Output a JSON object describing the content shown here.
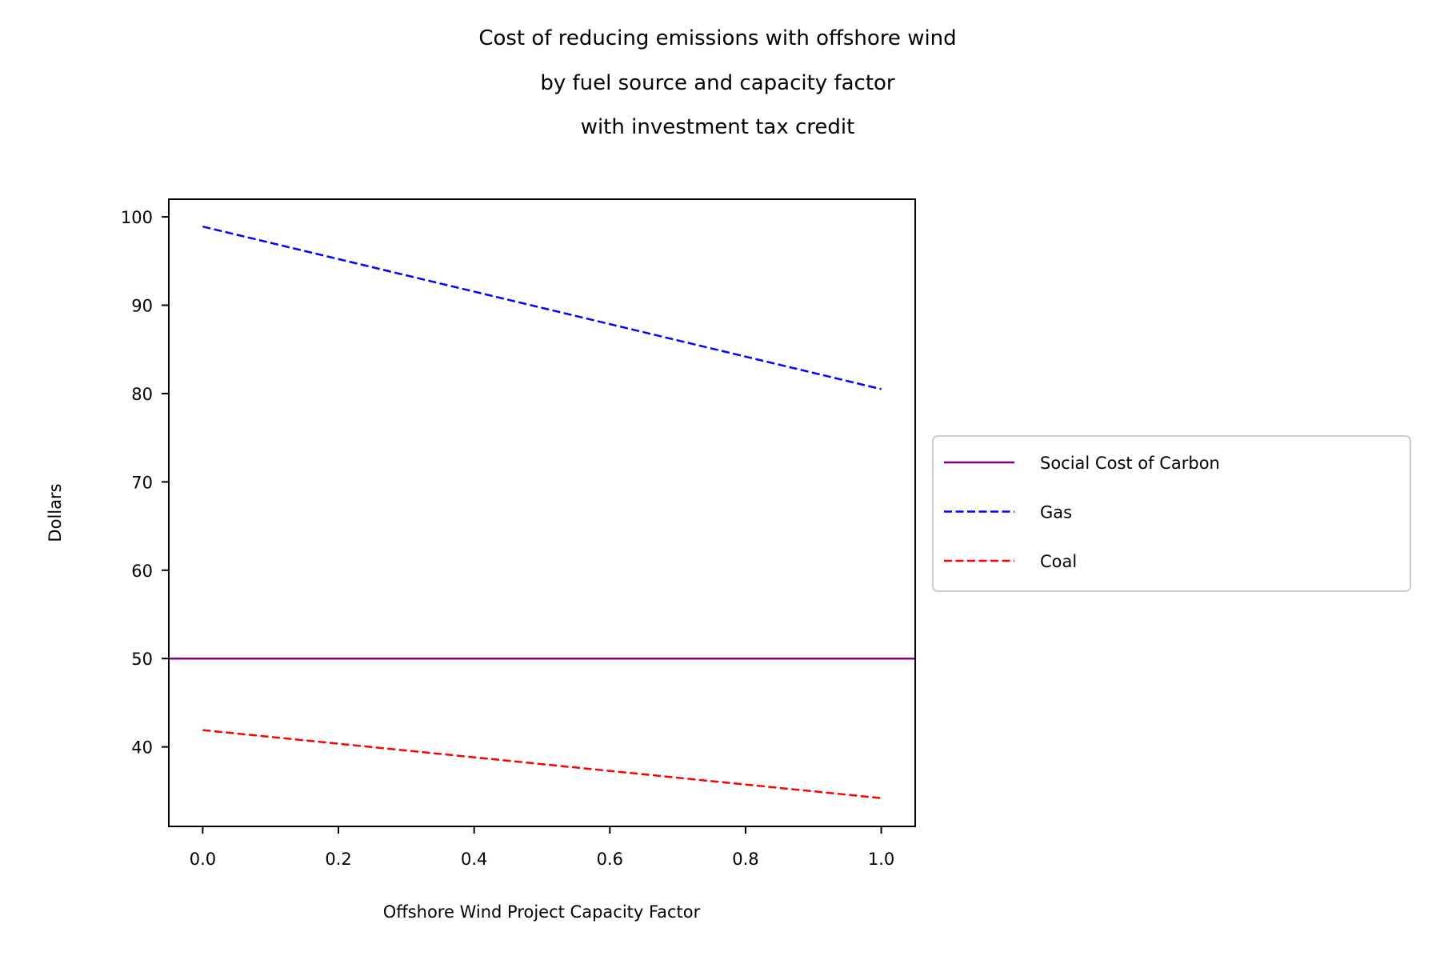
{
  "chart_data": {
    "type": "line",
    "title_lines": [
      "Cost of reducing emissions with offshore wind",
      "by fuel source and capacity factor",
      "with investment tax credit"
    ],
    "xlabel": "Offshore Wind Project Capacity Factor",
    "ylabel": "Dollars",
    "xlim": [
      -0.05,
      1.05
    ],
    "ylim": [
      31,
      102
    ],
    "xticks": [
      "0.0",
      "0.2",
      "0.4",
      "0.6",
      "0.8",
      "1.0"
    ],
    "yticks": [
      "40",
      "50",
      "60",
      "70",
      "80",
      "90",
      "100"
    ],
    "grid": false,
    "legend_position": "outside-right",
    "series": [
      {
        "name": "Social Cost of Carbon",
        "color": "#800080",
        "style": "solid",
        "kind": "hline",
        "y": 50
      },
      {
        "name": "Gas",
        "color": "#0000ff",
        "style": "dashed",
        "x": [
          0.0,
          1.0
        ],
        "y": [
          98.9,
          80.5
        ]
      },
      {
        "name": "Coal",
        "color": "#ff0000",
        "style": "dashed",
        "x": [
          0.0,
          1.0
        ],
        "y": [
          41.9,
          34.2
        ]
      }
    ]
  }
}
